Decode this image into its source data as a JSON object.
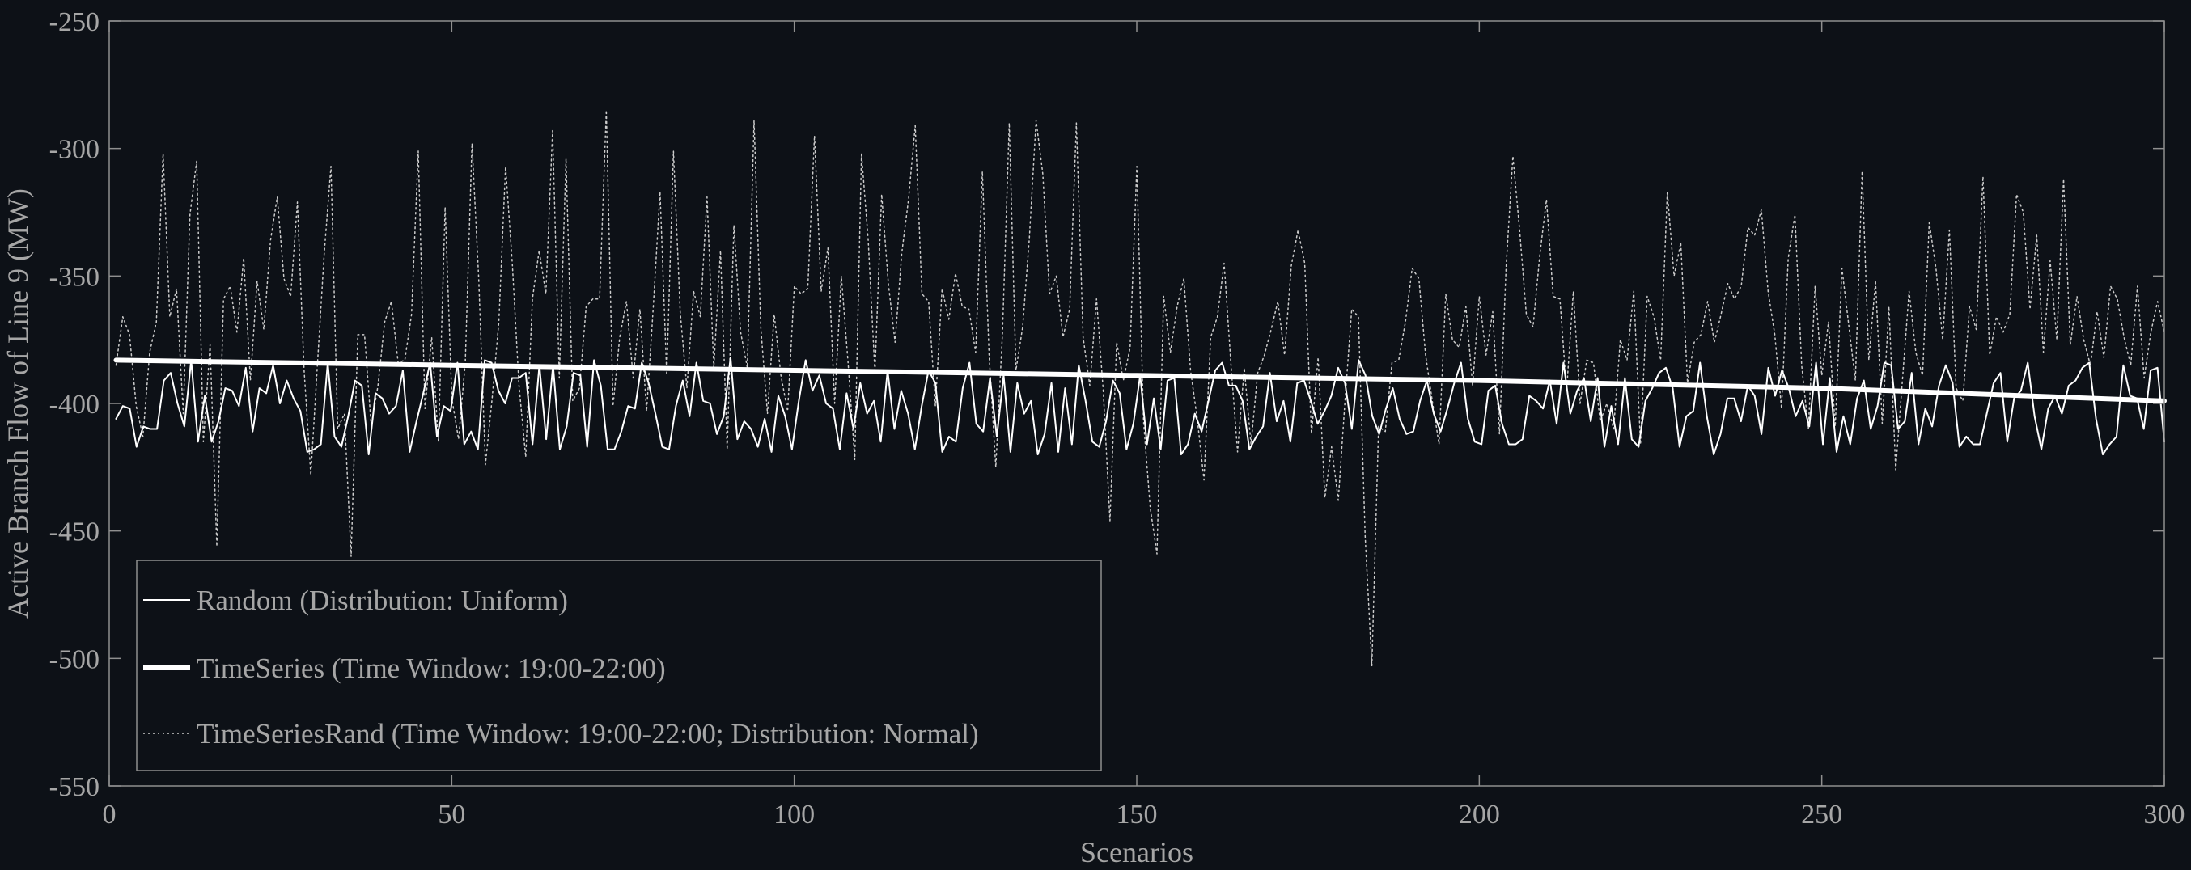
{
  "chart_data": {
    "type": "line",
    "title": "",
    "xlabel": "Scenarios",
    "ylabel": "Active Branch Flow of Line 9 (MW)",
    "xlim": [
      0,
      300
    ],
    "ylim": [
      -550,
      -250
    ],
    "xticks": [
      0,
      50,
      100,
      150,
      200,
      250,
      300
    ],
    "yticks": [
      -550,
      -500,
      -450,
      -400,
      -350,
      -300,
      -250
    ],
    "grid": false,
    "legend_position": "bottom-left",
    "series": [
      {
        "name": "Random (Distribution: Uniform)",
        "style": "solid-thin",
        "color": "#ffffff",
        "x_range": [
          1,
          300
        ],
        "y_range": [
          -420,
          -381
        ],
        "values": [
          -406,
          -401,
          -402,
          -417,
          -409,
          -410,
          -410,
          -391,
          -388,
          -400,
          -409,
          -383,
          -415,
          -397,
          -415,
          -407,
          -394,
          -395,
          -401,
          -386,
          -411,
          -394,
          -396,
          -385,
          -400,
          -391,
          -398,
          -403,
          -419,
          -418,
          -416,
          -384,
          -413,
          -417,
          -405,
          -391,
          -393,
          -420,
          -396,
          -398,
          -404,
          -401,
          -387,
          -419,
          -407,
          -396,
          -384,
          -413,
          -401,
          -403,
          -384,
          -416,
          -411,
          -418,
          -383,
          -384,
          -395,
          -400,
          -390,
          -390,
          -388,
          -416,
          -385,
          -414,
          -385,
          -418,
          -409,
          -388,
          -389,
          -417,
          -383,
          -393,
          -418,
          -418,
          -411,
          -401,
          -402,
          -384,
          -392,
          -404,
          -417,
          -418,
          -401,
          -391,
          -405,
          -384,
          -399,
          -400,
          -412,
          -405,
          -382,
          -414,
          -407,
          -410,
          -417,
          -406,
          -419,
          -397,
          -405,
          -418,
          -399,
          -383,
          -395,
          -389,
          -400,
          -402,
          -418,
          -396,
          -410,
          -392,
          -404,
          -399,
          -415,
          -387,
          -410,
          -395,
          -404,
          -418,
          -401,
          -387,
          -392,
          -419,
          -413,
          -415,
          -394,
          -384,
          -408,
          -411,
          -390,
          -413,
          -389,
          -419,
          -392,
          -404,
          -399,
          -420,
          -412,
          -392,
          -419,
          -394,
          -416,
          -385,
          -399,
          -415,
          -417,
          -407,
          -391,
          -396,
          -418,
          -408,
          -389,
          -416,
          -398,
          -418,
          -391,
          -390,
          -420,
          -416,
          -404,
          -411,
          -399,
          -387,
          -384,
          -393,
          -393,
          -399,
          -418,
          -413,
          -409,
          -388,
          -407,
          -399,
          -415,
          -392,
          -391,
          -399,
          -408,
          -403,
          -397,
          -386,
          -392,
          -410,
          -383,
          -389,
          -405,
          -412,
          -402,
          -394,
          -406,
          -412,
          -411,
          -399,
          -391,
          -404,
          -411,
          -402,
          -392,
          -384,
          -406,
          -415,
          -416,
          -395,
          -393,
          -408,
          -416,
          -416,
          -414,
          -397,
          -399,
          -402,
          -391,
          -408,
          -384,
          -404,
          -395,
          -390,
          -407,
          -390,
          -417,
          -401,
          -416,
          -390,
          -414,
          -417,
          -399,
          -394,
          -388,
          -386,
          -394,
          -417,
          -405,
          -403,
          -384,
          -405,
          -420,
          -412,
          -398,
          -398,
          -407,
          -393,
          -397,
          -412,
          -386,
          -397,
          -387,
          -394,
          -405,
          -399,
          -409,
          -384,
          -416,
          -390,
          -419,
          -405,
          -416,
          -398,
          -391,
          -410,
          -401,
          -384,
          -385,
          -410,
          -407,
          -388,
          -416,
          -402,
          -409,
          -393,
          -385,
          -392,
          -417,
          -413,
          -416,
          -416,
          -404,
          -392,
          -388,
          -415,
          -398,
          -395,
          -384,
          -405,
          -418,
          -402,
          -397,
          -404,
          -393,
          -391,
          -386,
          -384,
          -406,
          -420,
          -416,
          -413,
          -385,
          -397,
          -398,
          -410,
          -387,
          -386,
          -415
        ]
      },
      {
        "name": "TimeSeries (Time Window: 19:00-22:00)",
        "style": "solid-thick",
        "color": "#ffffff",
        "x": [
          1,
          50,
          100,
          150,
          200,
          250,
          300
        ],
        "values": [
          -383,
          -385,
          -387,
          -389,
          -391,
          -394,
          -399
        ]
      },
      {
        "name": "TimeSeriesRand (Time Window: 19:00-22:00; Distribution: Normal)",
        "style": "dotted",
        "color": "#cccccc",
        "x_range": [
          1,
          300
        ],
        "y_range": [
          -503,
          -279
        ],
        "values": [
          -385,
          -366,
          -373,
          -401,
          -413,
          -380,
          -368,
          -302,
          -366,
          -355,
          -404,
          -326,
          -305,
          -415,
          -377,
          -456,
          -359,
          -354,
          -372,
          -343,
          -391,
          -352,
          -371,
          -336,
          -319,
          -351,
          -358,
          -321,
          -387,
          -428,
          -384,
          -341,
          -307,
          -410,
          -404,
          -460,
          -373,
          -373,
          -409,
          -393,
          -368,
          -360,
          -384,
          -383,
          -365,
          -301,
          -402,
          -374,
          -415,
          -323,
          -398,
          -414,
          -384,
          -298,
          -351,
          -424,
          -398,
          -368,
          -307,
          -345,
          -393,
          -421,
          -359,
          -340,
          -357,
          -293,
          -390,
          -304,
          -399,
          -394,
          -362,
          -359,
          -359,
          -285,
          -401,
          -374,
          -360,
          -390,
          -363,
          -403,
          -362,
          -317,
          -389,
          -301,
          -364,
          -394,
          -356,
          -366,
          -319,
          -386,
          -340,
          -418,
          -330,
          -372,
          -386,
          -289,
          -370,
          -404,
          -365,
          -389,
          -403,
          -354,
          -357,
          -355,
          -295,
          -356,
          -339,
          -400,
          -350,
          -384,
          -422,
          -302,
          -336,
          -388,
          -318,
          -353,
          -376,
          -341,
          -320,
          -291,
          -357,
          -360,
          -401,
          -355,
          -367,
          -349,
          -362,
          -363,
          -380,
          -309,
          -381,
          -425,
          -372,
          -290,
          -387,
          -370,
          -335,
          -289,
          -310,
          -357,
          -350,
          -374,
          -363,
          -290,
          -374,
          -393,
          -359,
          -395,
          -446,
          -376,
          -391,
          -378,
          -307,
          -407,
          -441,
          -459,
          -358,
          -380,
          -362,
          -351,
          -387,
          -406,
          -430,
          -374,
          -366,
          -345,
          -384,
          -419,
          -386,
          -416,
          -388,
          -381,
          -371,
          -360,
          -381,
          -346,
          -332,
          -345,
          -412,
          -382,
          -437,
          -417,
          -438,
          -399,
          -363,
          -366,
          -452,
          -503,
          -409,
          -411,
          -384,
          -383,
          -368,
          -347,
          -351,
          -381,
          -399,
          -416,
          -357,
          -375,
          -378,
          -362,
          -393,
          -358,
          -381,
          -364,
          -412,
          -346,
          -303,
          -332,
          -365,
          -370,
          -342,
          -320,
          -358,
          -359,
          -395,
          -356,
          -400,
          -383,
          -384,
          -407,
          -400,
          -410,
          -375,
          -383,
          -356,
          -416,
          -358,
          -366,
          -383,
          -317,
          -350,
          -337,
          -392,
          -376,
          -373,
          -360,
          -376,
          -365,
          -353,
          -359,
          -354,
          -331,
          -334,
          -324,
          -356,
          -373,
          -402,
          -343,
          -326,
          -385,
          -410,
          -354,
          -389,
          -368,
          -409,
          -347,
          -369,
          -391,
          -309,
          -383,
          -352,
          -408,
          -362,
          -426,
          -391,
          -356,
          -380,
          -389,
          -329,
          -347,
          -375,
          -332,
          -394,
          -399,
          -362,
          -371,
          -311,
          -381,
          -366,
          -372,
          -365,
          -318,
          -325,
          -363,
          -334,
          -380,
          -344,
          -375,
          -312,
          -377,
          -358,
          -375,
          -385,
          -364,
          -382,
          -354,
          -359,
          -374,
          -385,
          -354,
          -390,
          -372,
          -360,
          -372
        ]
      }
    ]
  }
}
